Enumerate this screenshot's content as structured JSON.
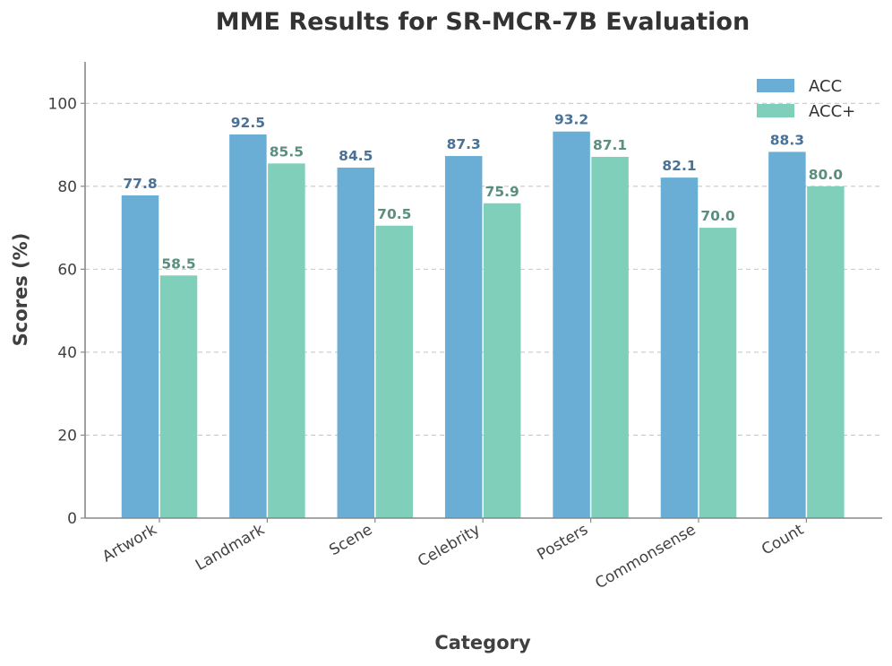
{
  "chart_data": {
    "type": "bar",
    "title": "MME Results for SR-MCR-7B Evaluation",
    "xlabel": "Category",
    "ylabel": "Scores (%)",
    "ylim": [
      0,
      110
    ],
    "yticks": [
      "0",
      "20",
      "40",
      "60",
      "80",
      "100"
    ],
    "grid": "y-dashed",
    "legend_position": "top-right",
    "categories": [
      "Artwork",
      "Landmark",
      "Scene",
      "Celebrity",
      "Posters",
      "Commonsense",
      "Count"
    ],
    "series": [
      {
        "name": "ACC",
        "color": "#6aaed6",
        "label_color": "#4a7196",
        "values": [
          77.8,
          92.5,
          84.5,
          87.3,
          93.2,
          82.1,
          88.3
        ],
        "labels": [
          "77.8",
          "92.5",
          "84.5",
          "87.3",
          "93.2",
          "82.1",
          "88.3"
        ]
      },
      {
        "name": "ACC+",
        "color": "#7fcfbb",
        "label_color": "#5a8f80",
        "values": [
          58.5,
          85.5,
          70.5,
          75.9,
          87.1,
          70.0,
          80.0
        ],
        "labels": [
          "58.5",
          "85.5",
          "70.5",
          "75.9",
          "87.1",
          "70.0",
          "80.0"
        ]
      }
    ]
  }
}
